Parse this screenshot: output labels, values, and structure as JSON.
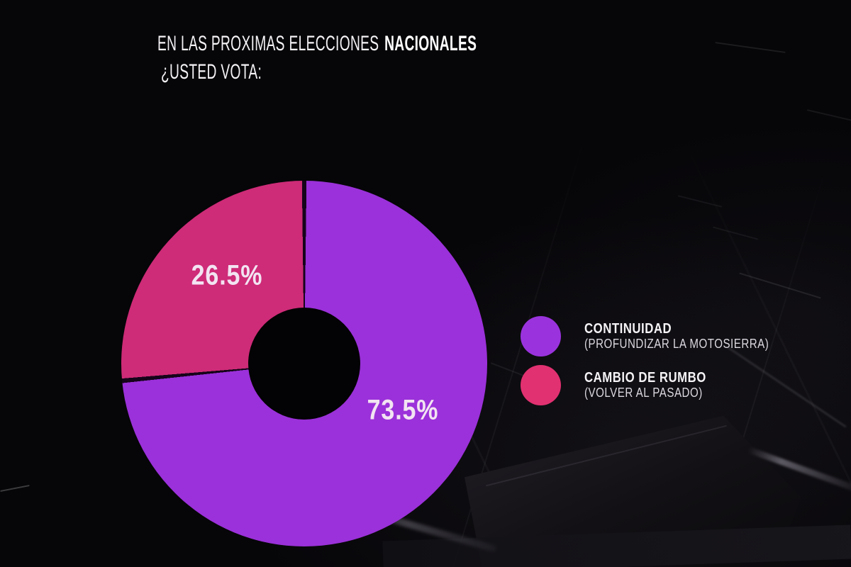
{
  "title": {
    "line1_regular": "EN LAS PROXIMAS ELECCIONES",
    "line1_bold": "NACIONALES",
    "line2": "¿USTED VOTA:"
  },
  "chart_data": {
    "type": "pie",
    "donut": true,
    "title": "EN LAS PROXIMAS ELECCIONES NACIONALES ¿USTED VOTA:",
    "categories": [
      "CONTINUIDAD (PROFUNDIZAR LA MOTOSIERRA)",
      "CAMBIO DE RUMBO (VOLVER AL PASADO)"
    ],
    "values": [
      73.5,
      26.5
    ],
    "labels": [
      "73.5%",
      "26.5%"
    ],
    "colors": [
      "#9b31da",
      "#ce2b78"
    ],
    "divider_color": "#16041a",
    "start_angle_deg": 0,
    "direction": "clockwise",
    "legend_position": "right",
    "legend": [
      {
        "label": "CONTINUIDAD",
        "sublabel": "(PROFUNDIZAR LA MOTOSIERRA)",
        "dot_color": "#9a33dd"
      },
      {
        "label": "CAMBIO DE RUMBO",
        "sublabel": "(VOLVER AL PASADO)",
        "dot_color": "#e23170"
      }
    ]
  },
  "background": {
    "color": "#060508"
  }
}
